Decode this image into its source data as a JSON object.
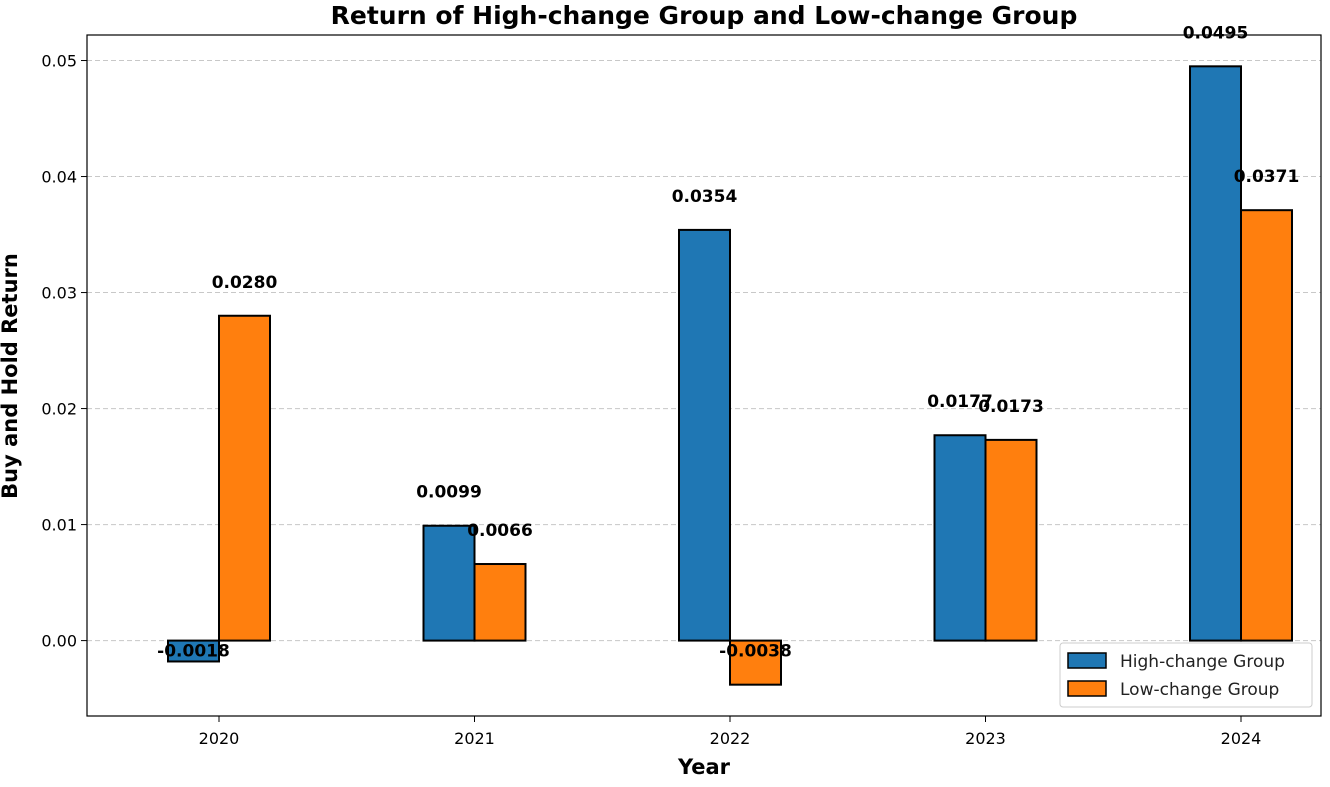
{
  "chart_data": {
    "type": "bar",
    "title": "Return of High-change Group and Low-change Group",
    "xlabel": "Year",
    "ylabel": "Buy and Hold Return",
    "categories": [
      "2020",
      "2021",
      "2022",
      "2023",
      "2024"
    ],
    "series": [
      {
        "name": "High-change Group",
        "color": "#1f77b4",
        "values": [
          -0.0018,
          0.0099,
          0.0354,
          0.0177,
          0.0495
        ],
        "labels": [
          "-0.0018",
          "0.0099",
          "0.0354",
          "0.0177",
          "0.0495"
        ]
      },
      {
        "name": "Low-change Group",
        "color": "#ff7f0e",
        "values": [
          0.028,
          0.0066,
          -0.0038,
          0.0173,
          0.0371
        ],
        "labels": [
          "0.0280",
          "0.0066",
          "-0.0038",
          "0.0173",
          "0.0371"
        ]
      }
    ],
    "ylim": [
      -0.0065,
      0.0522
    ],
    "yticks": [
      0.0,
      0.01,
      0.02,
      0.03,
      0.04,
      0.05
    ],
    "ytick_labels": [
      "0.00",
      "0.01",
      "0.02",
      "0.03",
      "0.04",
      "0.05"
    ],
    "grid": "horizontal dashed",
    "legend_position": "lower-right"
  }
}
